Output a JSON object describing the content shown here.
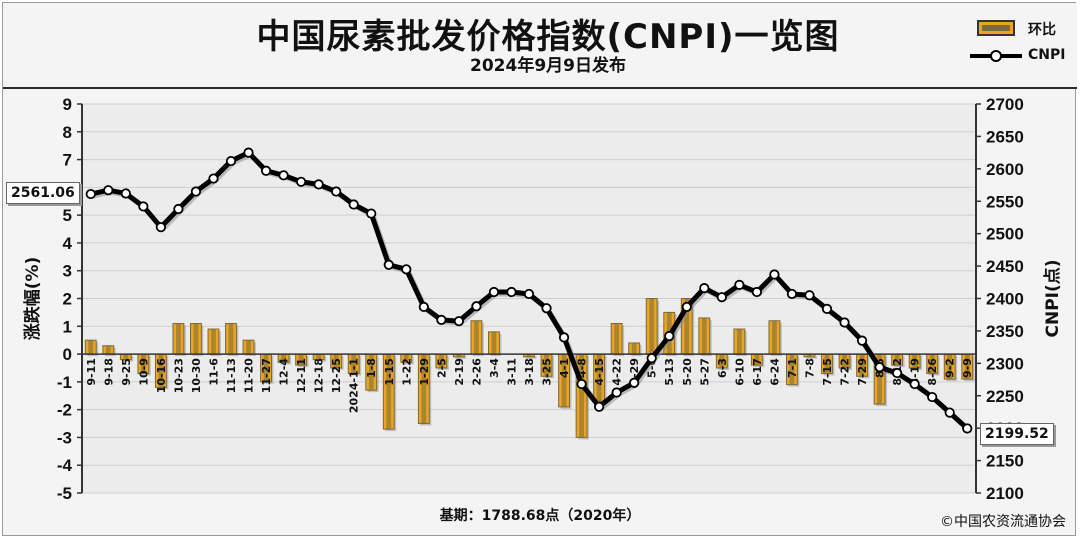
{
  "title": "中国尿素批发价格指数(CNPI)一览图",
  "subtitle": "2024年9月9日发布",
  "legend": [
    {
      "label": "环比",
      "kind": "bar"
    },
    {
      "label": "CNPI",
      "kind": "line"
    }
  ],
  "basis": "基期：1788.68点（2020年）",
  "copyright": "©中国农资流通协会",
  "colors": {
    "bar_fill": "#e9a523",
    "bar_edge": "#7a6a3a",
    "line": "#000000",
    "marker_fill": "#ffffff",
    "grid": "#cfcfcf",
    "plot_bg": "#ececec"
  },
  "chart_data": {
    "type": "bar+line",
    "categories": [
      "9-11",
      "9-18",
      "9-25",
      "10-9",
      "10-16",
      "10-23",
      "10-30",
      "11-6",
      "11-13",
      "11-20",
      "11-27",
      "12-4",
      "12-11",
      "12-18",
      "12-25",
      "2024-1-1",
      "1-8",
      "1-15",
      "1-22",
      "1-29",
      "2-5",
      "2-19",
      "2-26",
      "3-4",
      "3-11",
      "3-18",
      "3-25",
      "4-1",
      "4-8",
      "4-15",
      "4-22",
      "4-29",
      "5-6",
      "5-13",
      "5-20",
      "5-27",
      "6-3",
      "6-10",
      "6-17",
      "6-24",
      "7-1",
      "7-8",
      "7-15",
      "7-22",
      "7-29",
      "8-5",
      "8-12",
      "8-19",
      "8-26",
      "9-2",
      "9-9"
    ],
    "xtick_labels": [
      "9-11",
      "9-18",
      "9-25",
      "10-9",
      "10-16",
      "10-23",
      "10-30",
      "11-6",
      "11-13",
      "11-20",
      "11-27",
      "12-4",
      "12-11",
      "12-18",
      "12-25",
      "2024-1-1",
      "1-8",
      "1-15",
      "1-22",
      "1-29",
      "2-5",
      "2-19",
      "2-26",
      "3-4",
      "3-11",
      "3-18",
      "3-25",
      "4-1",
      "4-8",
      "4-15",
      "4-22",
      "4-29",
      "5-6",
      "5-13",
      "5-20",
      "5-27",
      "6-3",
      "6-10",
      "6-17",
      "6-24",
      "7-1",
      "7-8",
      "7-15",
      "7-22",
      "7-29",
      "8-5",
      "8-12",
      "8-19",
      "8-26",
      "9-2",
      "9-9"
    ],
    "series": [
      {
        "name": "环比",
        "axis": "left",
        "kind": "bar",
        "values": [
          0.5,
          0.3,
          -0.2,
          -0.7,
          -1.2,
          1.1,
          1.1,
          0.9,
          1.1,
          0.5,
          -1.0,
          -0.3,
          -0.4,
          -0.2,
          -0.5,
          -0.7,
          -1.3,
          -2.7,
          -0.3,
          -2.5,
          -0.5,
          -0.1,
          1.2,
          0.8,
          0,
          -0.1,
          -0.8,
          -1.9,
          -3.0,
          -1.7,
          1.1,
          0.4,
          2.0,
          1.5,
          2.0,
          1.3,
          -0.5,
          0.9,
          -0.4,
          1.2,
          -1.1,
          -0.1,
          -0.7,
          -0.5,
          -0.8,
          -1.8,
          -0.4,
          -0.5,
          -0.7,
          -0.9,
          -0.9
        ]
      },
      {
        "name": "CNPI",
        "axis": "right",
        "kind": "line",
        "values": [
          2561.06,
          2567,
          2562,
          2542,
          2510,
          2538,
          2565,
          2585,
          2612,
          2625,
          2597,
          2590,
          2580,
          2576,
          2565,
          2545,
          2531,
          2452,
          2445,
          2387,
          2367,
          2365,
          2388,
          2410,
          2410,
          2407,
          2385,
          2340,
          2268,
          2233,
          2255,
          2270,
          2308,
          2342,
          2387,
          2416,
          2402,
          2421,
          2410,
          2437,
          2407,
          2405,
          2384,
          2363,
          2335,
          2294,
          2285,
          2268,
          2248,
          2224,
          2199.52
        ]
      }
    ],
    "y_left": {
      "label": "涨跌幅(%)",
      "range": [
        -5,
        9
      ],
      "ticks": [
        9,
        8,
        7,
        6,
        5,
        4,
        3,
        2,
        1,
        0,
        -1,
        -2,
        -3,
        -4,
        -5
      ]
    },
    "y_right": {
      "label": "CNPI(点)",
      "range": [
        2100,
        2700
      ],
      "ticks": [
        2700,
        2650,
        2600,
        2550,
        2500,
        2450,
        2400,
        2350,
        2300,
        2250,
        2200,
        2150,
        2100
      ]
    },
    "annotations": [
      {
        "text": "2561.06",
        "at": "start"
      },
      {
        "text": "2199.52",
        "at": "end"
      }
    ],
    "grid": true,
    "legend_position": "top-right"
  }
}
